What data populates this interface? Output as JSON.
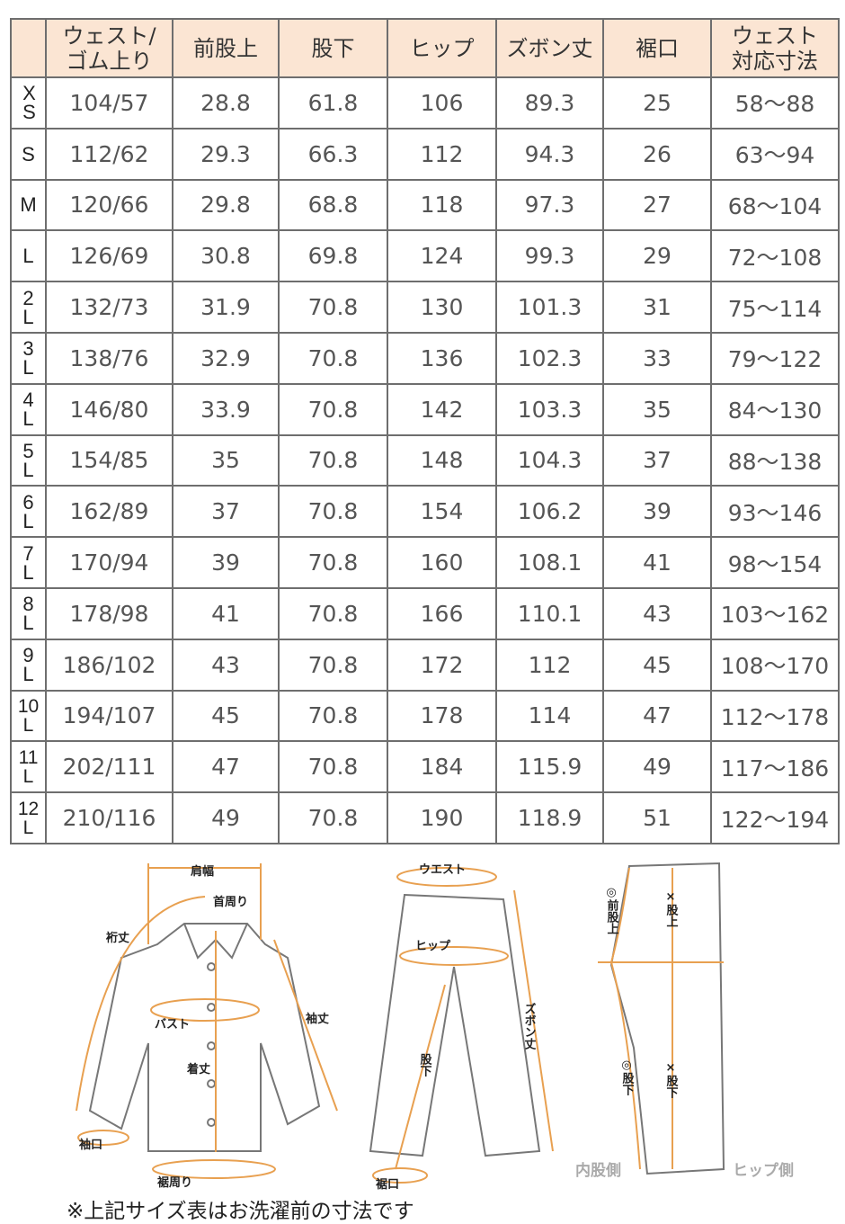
{
  "table": {
    "headers": [
      "",
      "ウェスト/\nゴム上り",
      "前股上",
      "股下",
      "ヒップ",
      "ズボン丈",
      "裾口",
      "ウェスト\n対応寸法"
    ],
    "rows": [
      [
        "XS",
        "104/57",
        "28.8",
        "61.8",
        "106",
        "89.3",
        "25",
        "58～88"
      ],
      [
        "S",
        "112/62",
        "29.3",
        "66.3",
        "112",
        "94.3",
        "26",
        "63～94"
      ],
      [
        "M",
        "120/66",
        "29.8",
        "68.8",
        "118",
        "97.3",
        "27",
        "68～104"
      ],
      [
        "L",
        "126/69",
        "30.8",
        "69.8",
        "124",
        "99.3",
        "29",
        "72～108"
      ],
      [
        "2L",
        "132/73",
        "31.9",
        "70.8",
        "130",
        "101.3",
        "31",
        "75～114"
      ],
      [
        "3L",
        "138/76",
        "32.9",
        "70.8",
        "136",
        "102.3",
        "33",
        "79～122"
      ],
      [
        "4L",
        "146/80",
        "33.9",
        "70.8",
        "142",
        "103.3",
        "35",
        "84～130"
      ],
      [
        "5L",
        "154/85",
        "35",
        "70.8",
        "148",
        "104.3",
        "37",
        "88～138"
      ],
      [
        "6L",
        "162/89",
        "37",
        "70.8",
        "154",
        "106.2",
        "39",
        "93～146"
      ],
      [
        "7L",
        "170/94",
        "39",
        "70.8",
        "160",
        "108.1",
        "41",
        "98～154"
      ],
      [
        "8L",
        "178/98",
        "41",
        "70.8",
        "166",
        "110.1",
        "43",
        "103～162"
      ],
      [
        "9L",
        "186/102",
        "43",
        "70.8",
        "172",
        "112",
        "45",
        "108～170"
      ],
      [
        "10L",
        "194/107",
        "45",
        "70.8",
        "178",
        "114",
        "47",
        "112～178"
      ],
      [
        "11L",
        "202/111",
        "47",
        "70.8",
        "184",
        "115.9",
        "49",
        "117～186"
      ],
      [
        "12L",
        "210/116",
        "49",
        "70.8",
        "190",
        "118.9",
        "51",
        "122～194"
      ]
    ]
  },
  "diagram": {
    "shirt": {
      "shoulder": "肩幅",
      "neck": "首周り",
      "yuki": "裄丈",
      "bust": "バスト",
      "sleeve": "袖丈",
      "length": "着丈",
      "cuff": "袖口",
      "hem": "裾周り"
    },
    "pants": {
      "waist": "ウエスト",
      "hip": "ヒップ",
      "length": "ズボン丈",
      "inseam": "股下",
      "hem": "裾口"
    },
    "side": {
      "front_rise": "◎前股上",
      "rise": "×股上",
      "inseam_o": "◎股下",
      "inseam_x": "×股下",
      "inner": "内股側",
      "hip_side": "ヒップ側"
    }
  },
  "colors": {
    "header_bg": "#fbe5d3",
    "accent": "#e8a050",
    "border": "#6e6e6e"
  },
  "note": "※上記サイズ表はお洗濯前の寸法です"
}
